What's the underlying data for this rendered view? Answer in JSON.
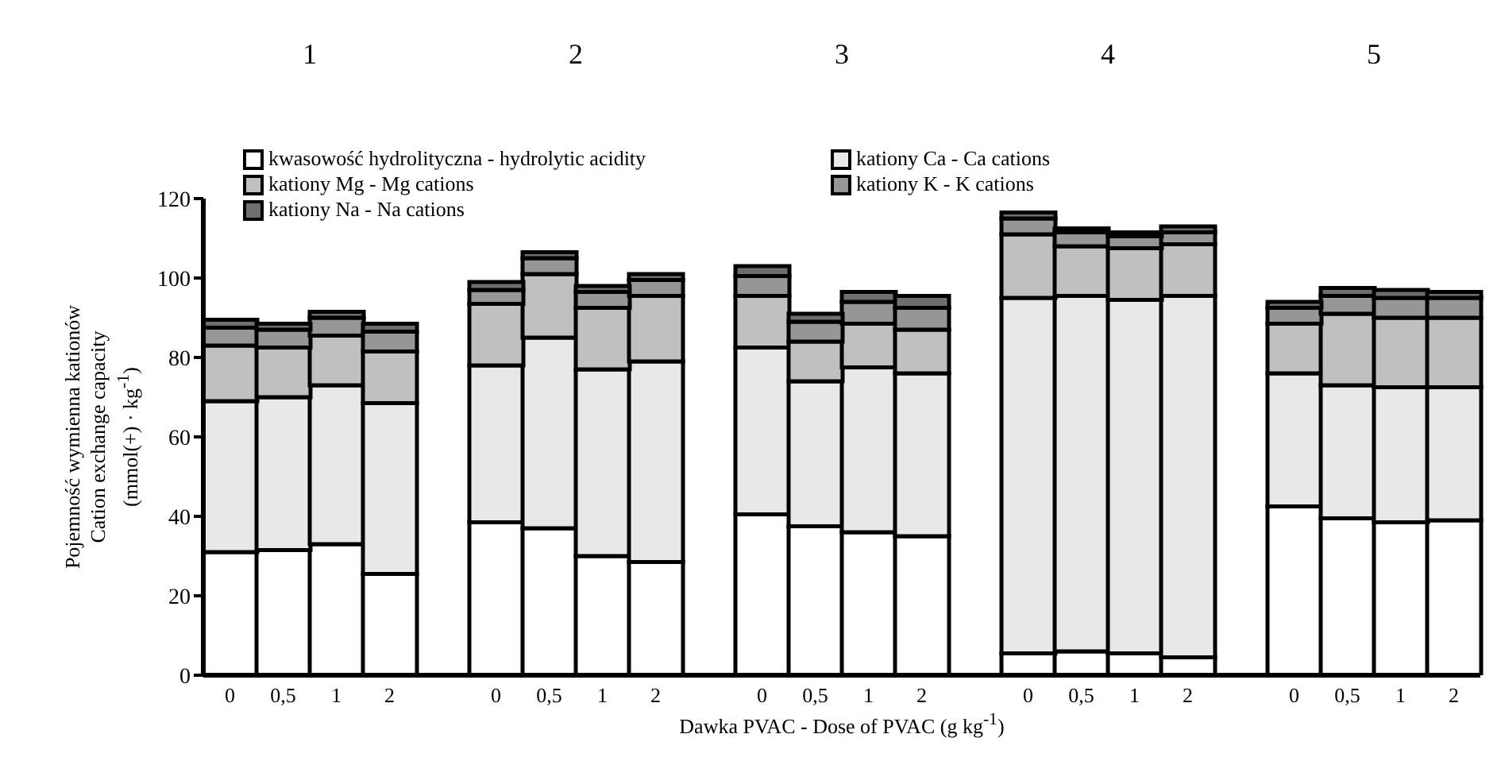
{
  "chart_data": {
    "type": "bar",
    "stacked": true,
    "ylabel": "Pojemność wymienna kationów\nCation exchange capacity\n(mmol(+) · kg$^{-1}$)",
    "xlabel": "Dawka PVAC - Dose of PVAC (g kg$^{-1}$)",
    "annotations": [
      "1",
      "2",
      "3",
      "4",
      "5"
    ],
    "categories": [
      "0",
      "0,5",
      "1",
      "2",
      null,
      "0",
      "0,5",
      "1",
      "2",
      null,
      "0",
      "0,5",
      "1",
      "2",
      null,
      "0",
      "0,5",
      "1",
      "2",
      null,
      "0",
      "0,5",
      "1",
      "2"
    ],
    "series": [
      {
        "name": "kwasowość hydrolityczna - hydrolytic acidity",
        "color": "#ffffff",
        "values": [
          31,
          31.5,
          33,
          25.5,
          null,
          38.5,
          37,
          30,
          28.5,
          null,
          40.5,
          37.5,
          36,
          35,
          null,
          5.5,
          6,
          5.5,
          4.5,
          null,
          42.5,
          39.5,
          38.5,
          39
        ]
      },
      {
        "name": "kationy Ca - Ca cations",
        "color": "#e8e8e8",
        "values": [
          38,
          38.5,
          40,
          43,
          null,
          39.5,
          48,
          47,
          50.5,
          null,
          42,
          36.5,
          41.5,
          41,
          null,
          89.5,
          89.5,
          89,
          91,
          null,
          33.5,
          33.5,
          34,
          33.5
        ]
      },
      {
        "name": "kationy Mg - Mg cations",
        "color": "#c0c0c0",
        "values": [
          14,
          12.5,
          12.5,
          13,
          null,
          15.5,
          16,
          15.5,
          16.5,
          null,
          13,
          10,
          11,
          11,
          null,
          16,
          12.5,
          13,
          13,
          null,
          12.5,
          18,
          17.5,
          17.5
        ]
      },
      {
        "name": "kationy K - K cations",
        "color": "#969696",
        "values": [
          4.5,
          4.5,
          4.5,
          5,
          null,
          3.5,
          4,
          4,
          4,
          null,
          5,
          5,
          5.5,
          5.5,
          null,
          4,
          3.5,
          3,
          3,
          null,
          4,
          4.5,
          5,
          5
        ]
      },
      {
        "name": "kationy Na - Na cations",
        "color": "#6e6e6e",
        "values": [
          2,
          1.5,
          1.5,
          2,
          null,
          2,
          1.5,
          1.5,
          1.5,
          null,
          2.5,
          2,
          2.5,
          3,
          null,
          1.5,
          1,
          1,
          1.5,
          null,
          1.5,
          2,
          2,
          1.5
        ]
      }
    ],
    "ylim": [
      0,
      120
    ],
    "yticks": [
      0,
      20,
      40,
      60,
      80,
      100,
      120
    ],
    "grid": false,
    "legend": "top"
  }
}
